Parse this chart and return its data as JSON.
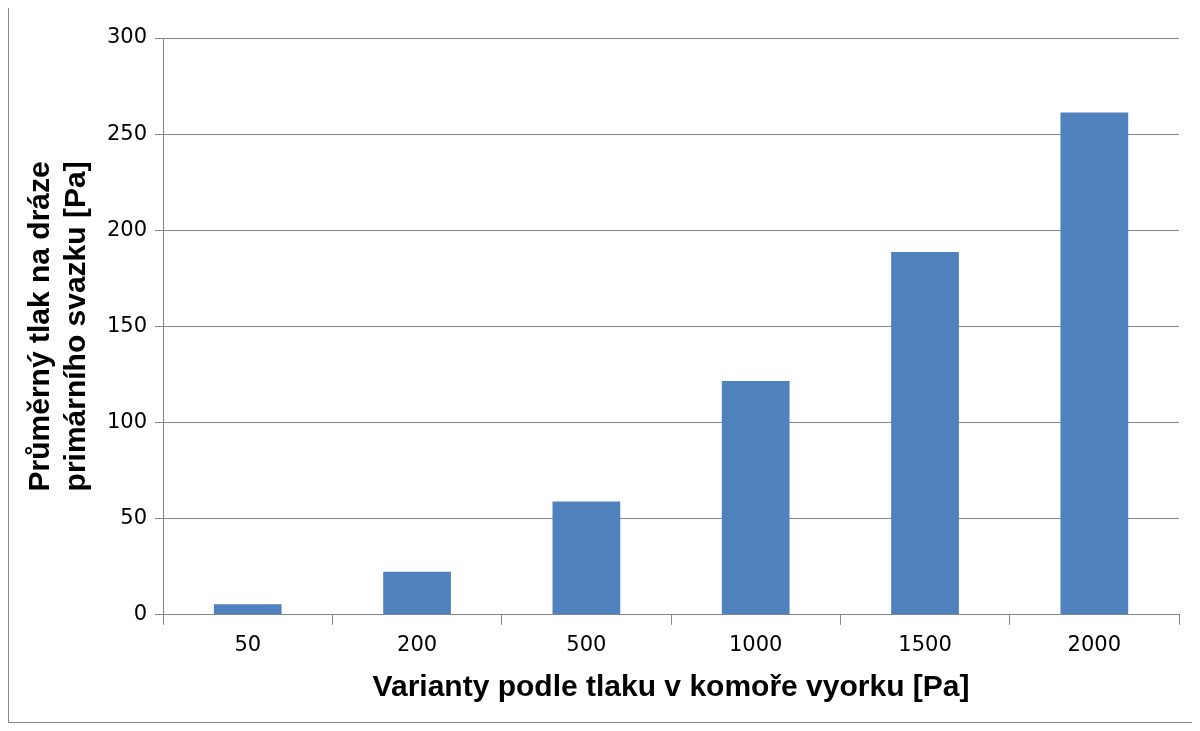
{
  "chart_data": {
    "type": "bar",
    "xlabel": "Varianty podle tlaku v komoře vyorku [Pa]",
    "ylabel": "Průměrný tlak na dráze primárního svazku [Pa]",
    "categories": [
      "50",
      "200",
      "500",
      "1000",
      "1500",
      "2000"
    ],
    "values": [
      5.5,
      22.4,
      58.9,
      121.6,
      188.7,
      261.3
    ],
    "color": "#4f81bd",
    "ylim": [
      0,
      300
    ],
    "yticks": [
      0,
      50,
      100,
      150,
      200,
      250,
      300
    ],
    "grid": "y"
  }
}
